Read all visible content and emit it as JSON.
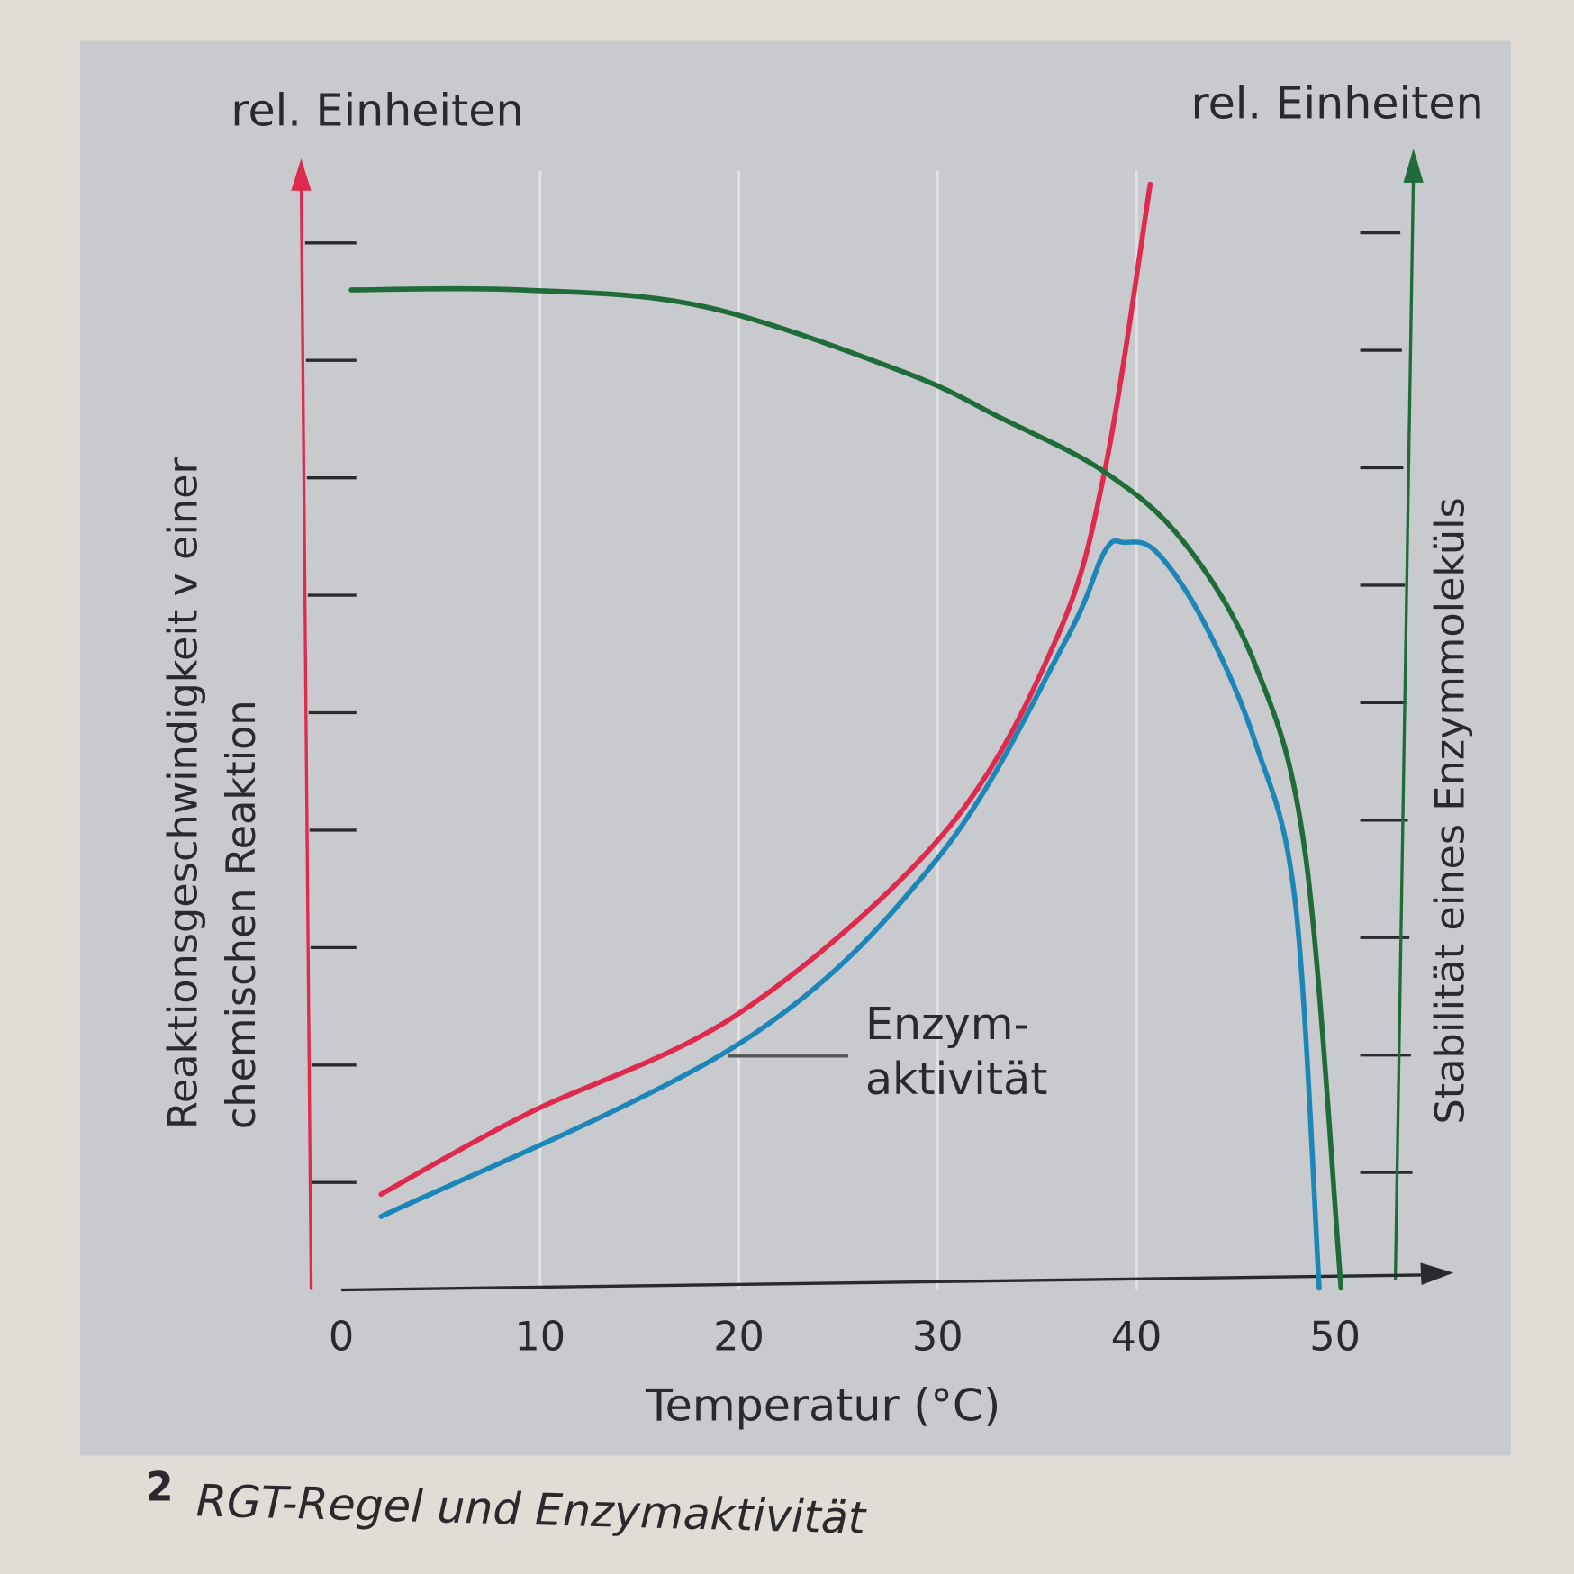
{
  "chart_data": {
    "type": "line",
    "title": "",
    "caption_number": "2",
    "caption": "RGT-Regel und Enzymaktivität",
    "xlabel": "Temperatur (°C)",
    "ylabel_left": "Reaktionsgeschwindigkeit v einer chemischen Reaktion",
    "ylabel_left_line1": "Reaktionsgeschwindigkeit v einer",
    "ylabel_left_line2": "chemischen Reaktion",
    "ylabel_right": "Stabilität eines Enzymmoleküls",
    "yunit_left": "rel. Einheiten",
    "yunit_right": "rel. Einheiten",
    "xlim": [
      0,
      55
    ],
    "ylim": [
      0,
      10.5
    ],
    "x_ticks": [
      "0",
      "10",
      "20",
      "30",
      "40",
      "50"
    ],
    "y_tick_count": 9,
    "grid": "vertical, faint",
    "annotation_line1": "Enzym-",
    "annotation_line2": "aktivität",
    "colors": {
      "red": "#e0294f",
      "blue": "#1d86b8",
      "green": "#1f6b3a",
      "background": "#c9cbcf"
    },
    "series": [
      {
        "color": "#e0294f",
        "axis": "left",
        "x": [
          2,
          9.3,
          20,
          30.3,
          35.9,
          38.4,
          40.7
        ],
        "y": [
          0.9,
          1.58,
          2.44,
          3.97,
          5.6,
          7.05,
          9.5
        ]
      },
      {
        "color": "#1d86b8",
        "axis": "left",
        "x": [
          2,
          20,
          30,
          36.4,
          38.4,
          39.4,
          41,
          43.4,
          46,
          48,
          49.2
        ],
        "y": [
          0.71,
          2.18,
          3.76,
          5.6,
          6.37,
          6.45,
          6.37,
          5.77,
          4.74,
          3.38,
          0.1
        ]
      },
      {
        "color": "#1f6b3a",
        "axis": "right",
        "x": [
          0.5,
          9,
          18.2,
          28.3,
          33.3,
          38.4,
          42.4,
          46,
          48.5,
          50.3
        ],
        "y": [
          8.6,
          8.6,
          8.46,
          7.9,
          7.5,
          7.05,
          6.45,
          5.4,
          3.8,
          0.1
        ]
      }
    ]
  }
}
